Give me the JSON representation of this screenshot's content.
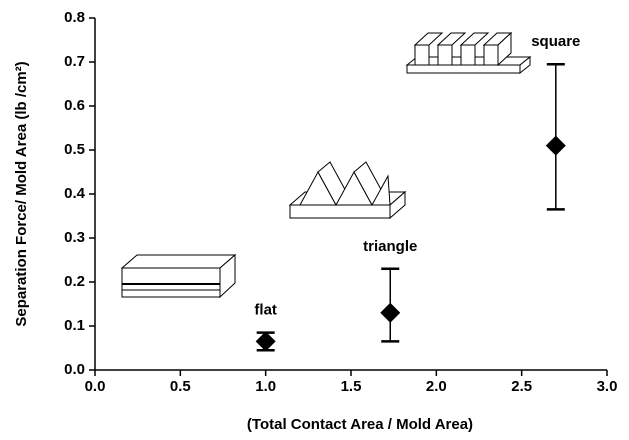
{
  "chart_data": {
    "type": "scatter",
    "xlabel": "(Total Contact Area / Mold Area)",
    "ylabel": "Separation Force/ Mold Area (lb /cm²)",
    "x": [
      1.0,
      1.73,
      2.7
    ],
    "values": [
      0.065,
      0.13,
      0.51
    ],
    "y_low": [
      0.045,
      0.065,
      0.365
    ],
    "y_high": [
      0.085,
      0.23,
      0.695
    ],
    "point_labels": [
      "flat",
      "triangle",
      "square"
    ],
    "color": "#000000",
    "xlim": [
      0,
      3.0
    ],
    "ylim": [
      0,
      0.8
    ],
    "xticks": [
      {
        "value": 0,
        "label": "0.0"
      },
      0.5,
      {
        "value": 1,
        "label": "1.0"
      },
      1.5,
      {
        "value": 2,
        "label": "2.0"
      },
      2.5,
      {
        "value": 3,
        "label": "3.0"
      }
    ],
    "yticks": [
      {
        "value": 0,
        "label": "0.0"
      },
      0.1,
      0.2,
      0.3,
      0.4,
      0.5,
      0.6,
      0.7,
      0.8
    ]
  }
}
